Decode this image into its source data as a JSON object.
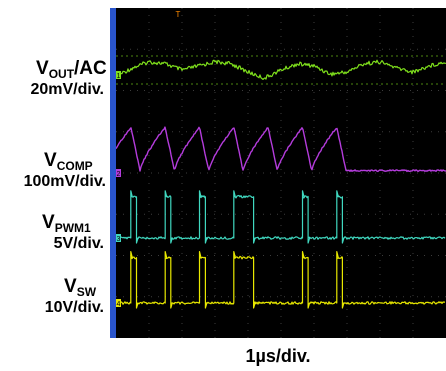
{
  "chart_data": {
    "type": "line",
    "title": "",
    "xlabel": "1µs/div.",
    "grid": true,
    "trigger_marker": "T",
    "time_per_div_us": 1,
    "series": [
      {
        "name": "VOUT/AC",
        "name_main": "V",
        "name_sub": "OUT",
        "name_suffix": "/AC",
        "scale": "20mV/div.",
        "color": "#7fe01c",
        "ground_marker": "1",
        "x": [
          0,
          0.5,
          1.0,
          1.5,
          2.0,
          2.5,
          3.0,
          3.5,
          4.0,
          4.5,
          5.0,
          5.5,
          6.0,
          6.5,
          7.0,
          7.5,
          8.0,
          8.5,
          9.0,
          9.5,
          10.0
        ],
        "values": [
          -3,
          1,
          4,
          3,
          0,
          2,
          4,
          3,
          -1,
          -4,
          0,
          3,
          2,
          -2,
          -1,
          3,
          4,
          1,
          -1,
          2,
          4
        ]
      },
      {
        "name": "VCOMP",
        "name_main": "V",
        "name_sub": "COMP",
        "scale": "100mV/div.",
        "color": "#b43cdc",
        "ground_marker": "2",
        "period_us": 1.04,
        "peak_times_us": [
          0.45,
          1.49,
          2.53,
          3.57,
          4.61,
          5.65,
          6.69
        ],
        "peak_level_div": 0.55,
        "valley_level_div": -0.5
      },
      {
        "name": "VPWM1",
        "name_main": "V",
        "name_sub": "PWM1",
        "scale": "5V/div.",
        "color": "#40d8c0",
        "ground_marker": "3",
        "high_level_div": 1.0,
        "low_level_div": 0.0,
        "pulses_us": [
          [
            0.45,
            0.62
          ],
          [
            1.49,
            1.66
          ],
          [
            2.53,
            2.71
          ],
          [
            3.57,
            4.17
          ],
          [
            5.65,
            5.82
          ],
          [
            6.69,
            6.86
          ]
        ]
      },
      {
        "name": "VSW",
        "name_main": "V",
        "name_sub": "SW",
        "scale": "10V/div.",
        "color": "#e8e800",
        "ground_marker": "4",
        "high_level_div": 1.1,
        "low_level_div": 0.0,
        "pulses_us": [
          [
            0.45,
            0.62
          ],
          [
            1.49,
            1.66
          ],
          [
            2.53,
            2.71
          ],
          [
            3.57,
            4.17
          ],
          [
            5.65,
            5.82
          ],
          [
            6.69,
            6.86
          ]
        ]
      }
    ]
  }
}
